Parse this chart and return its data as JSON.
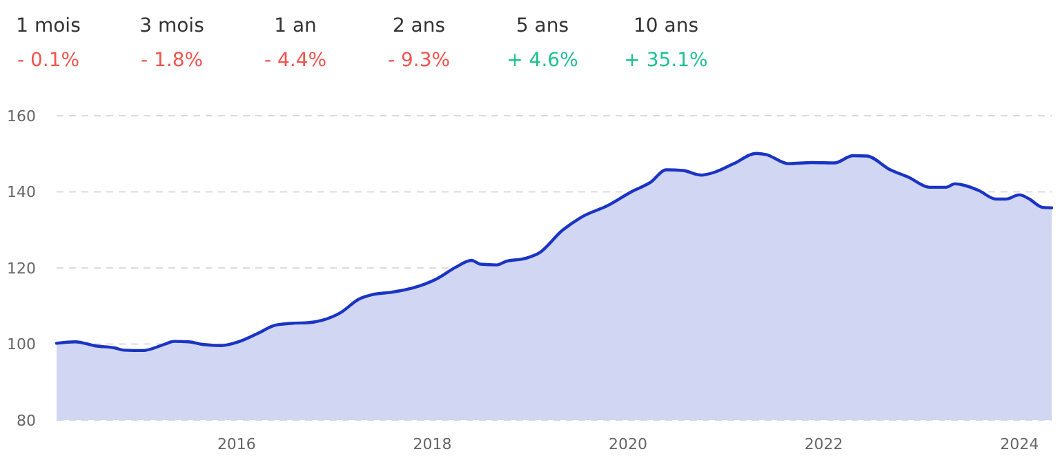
{
  "chart_data": [
    {
      "type": "other",
      "categories": [
        "1 mois",
        "3 mois",
        "1 an",
        "2 ans",
        "5 ans",
        "10 ans"
      ],
      "values": [
        -0.1,
        -1.8,
        -4.4,
        -9.3,
        4.6,
        35.1
      ],
      "value_labels": [
        "- 0.1%",
        "- 1.8%",
        "- 4.4%",
        "- 9.3%",
        "+ 4.6%",
        "+ 35.1%"
      ]
    },
    {
      "type": "area",
      "x": [
        2014.16,
        2014.35,
        2014.56,
        2014.75,
        2014.85,
        2015.04,
        2015.27,
        2015.36,
        2015.51,
        2015.65,
        2015.84,
        2016.02,
        2016.21,
        2016.4,
        2016.59,
        2016.73,
        2016.87,
        2017.06,
        2017.25,
        2017.39,
        2017.58,
        2017.81,
        2018.05,
        2018.24,
        2018.4,
        2018.49,
        2018.66,
        2018.75,
        2018.95,
        2019.09,
        2019.33,
        2019.52,
        2019.8,
        2020.04,
        2020.23,
        2020.39,
        2020.56,
        2020.75,
        2020.89,
        2021.08,
        2021.31,
        2021.41,
        2021.64,
        2021.88,
        2022.11,
        2022.3,
        2022.44,
        2022.68,
        2022.87,
        2023.08,
        2023.25,
        2023.34,
        2023.58,
        2023.76,
        2023.86,
        2024.0,
        2024.09,
        2024.24,
        2024.33
      ],
      "series": [
        {
          "color": "#1a34c4",
          "values": [
            100.2,
            100.6,
            99.5,
            99.0,
            98.4,
            98.3,
            100.0,
            100.7,
            100.6,
            99.9,
            99.6,
            100.6,
            102.7,
            105,
            105.5,
            105.6,
            106.2,
            108.2,
            111.8,
            113,
            113.6,
            114.8,
            117.2,
            120.2,
            122,
            121,
            120.8,
            121.7,
            122.5,
            123.9,
            129.9,
            133.3,
            136.5,
            140.1,
            142.5,
            145.8,
            145.6,
            144.4,
            145.2,
            147.4,
            150.1,
            149.8,
            147.4,
            147.7,
            147.6,
            149.5,
            149.4,
            145.8,
            143.8,
            141.2,
            141.2,
            142.1,
            140.4,
            138.1,
            138.1,
            139.2,
            138.3,
            135.9,
            135.8
          ]
        }
      ],
      "xlim": [
        2014.16,
        2024.33
      ],
      "xticks": [
        2016,
        2018,
        2020,
        2022,
        2024
      ],
      "ylim": [
        80,
        160
      ],
      "yticks": [
        80,
        100,
        120,
        140,
        160
      ],
      "grid": "y",
      "marker": "none",
      "line_style": "solid"
    }
  ]
}
